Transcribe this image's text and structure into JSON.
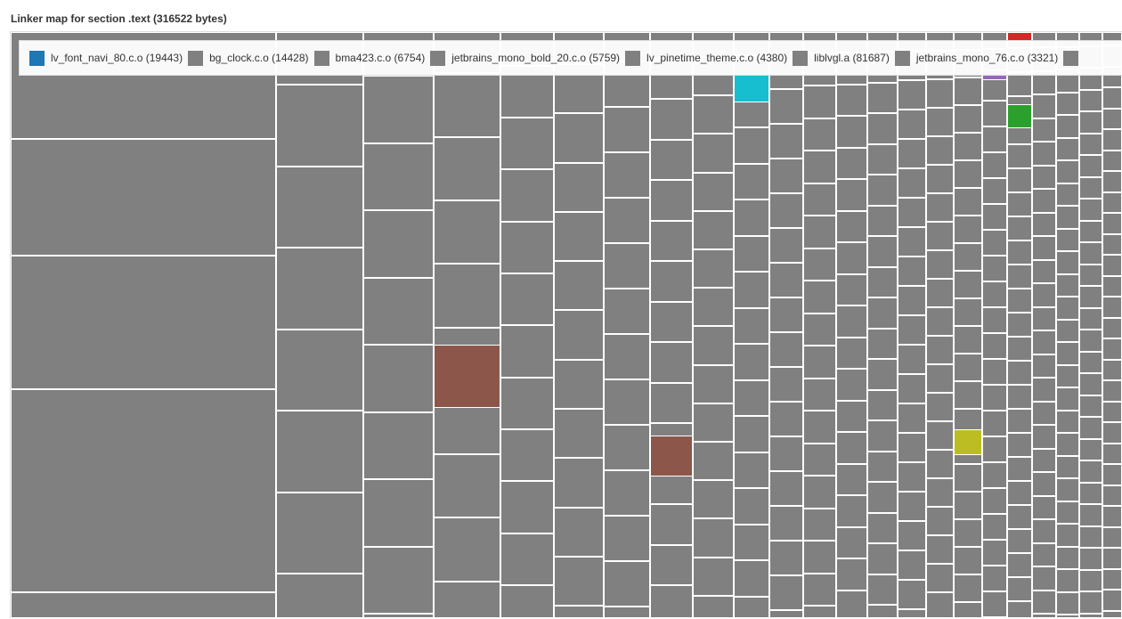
{
  "title": "Linker map for section .text (316522 bytes)",
  "chart_data": {
    "type": "treemap",
    "title": "Linker map for section .text (316522 bytes)",
    "legend_placement": "top",
    "legend": [
      {
        "label": "lv_font_navi_80.c.o (19443)",
        "color": "#1f77b4"
      },
      {
        "label": "bg_clock.c.o (14428)",
        "color": "#808080"
      },
      {
        "label": "bma423.c.o (6754)",
        "color": "#808080"
      },
      {
        "label": "jetbrains_mono_bold_20.c.o (5759)",
        "color": "#808080"
      },
      {
        "label": "lv_pinetime_theme.c.o (4380)",
        "color": "#808080"
      },
      {
        "label": "liblvgl.a (81687)",
        "color": "#808080"
      },
      {
        "label": "jetbrains_mono_76.c.o (3321)",
        "color": "#808080"
      }
    ],
    "highlight_colors": [
      "#8c564b",
      "#17becf",
      "#bcbd22",
      "#2ca02c",
      "#d62728",
      "#9467bd"
    ],
    "default_color": "#808080"
  }
}
